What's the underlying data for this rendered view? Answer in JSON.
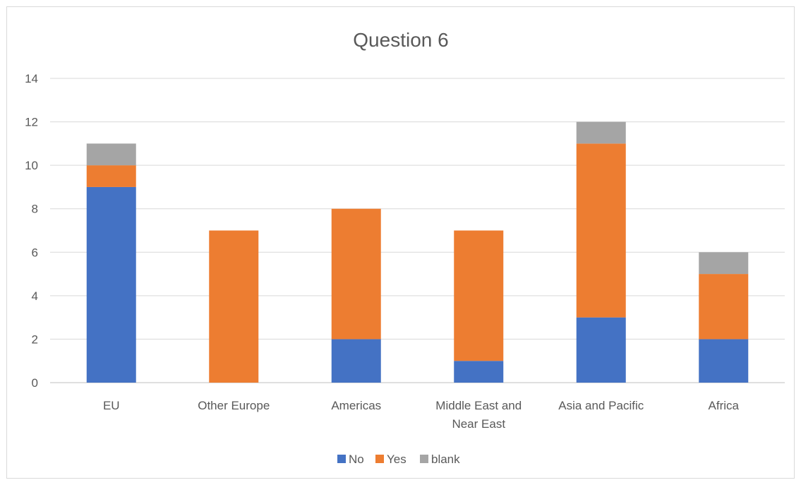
{
  "chart_data": {
    "type": "bar",
    "stacked": true,
    "title": "Question 6",
    "xlabel": "",
    "ylabel": "",
    "ylim": [
      0,
      14
    ],
    "ytick_step": 2,
    "grid": true,
    "legend_position": "bottom",
    "categories": [
      "EU",
      "Other Europe",
      "Americas",
      "Middle East and Near East",
      "Asia and Pacific",
      "Africa"
    ],
    "series": [
      {
        "name": "No",
        "color": "#4472C4",
        "values": [
          9,
          0,
          2,
          1,
          3,
          2
        ]
      },
      {
        "name": "Yes",
        "color": "#ED7D31",
        "values": [
          1,
          7,
          6,
          6,
          8,
          3
        ]
      },
      {
        "name": "blank",
        "color": "#A5A5A5",
        "values": [
          1,
          0,
          0,
          0,
          1,
          1
        ]
      }
    ]
  }
}
